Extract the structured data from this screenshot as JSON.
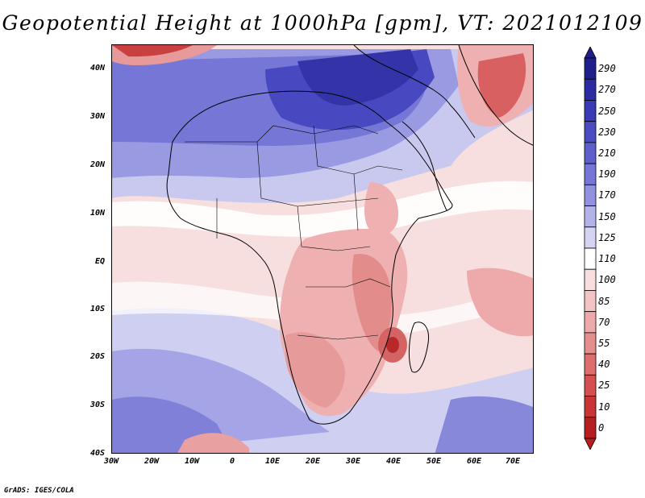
{
  "title": "Geopotential Height at 1000hPa [gpm], VT: 2021012109",
  "credit": "GrADS: IGES/COLA",
  "map": {
    "variable": "Geopotential Height",
    "level": "1000hPa",
    "units": "gpm",
    "valid_time": "2021012109",
    "lat_labels": [
      "40N",
      "30N",
      "20N",
      "10N",
      "EQ",
      "10S",
      "20S",
      "30S",
      "40S"
    ],
    "lon_labels": [
      "30W",
      "20W",
      "10W",
      "0",
      "10E",
      "20E",
      "30E",
      "40E",
      "50E",
      "60E",
      "70E"
    ]
  },
  "colorbar": {
    "labels": [
      "290",
      "270",
      "250",
      "230",
      "210",
      "190",
      "170",
      "150",
      "125",
      "110",
      "100",
      "85",
      "70",
      "55",
      "40",
      "25",
      "10",
      "0"
    ],
    "colors": [
      "#1f1f8c",
      "#2b2ba3",
      "#3a3ab4",
      "#4b4bc2",
      "#5f5fcc",
      "#7676d6",
      "#9191df",
      "#b3b3ea",
      "#d5d5f3",
      "#ffffff",
      "#f8dede",
      "#f3c4c4",
      "#eeaaaa",
      "#e68e8e",
      "#de6e6e",
      "#d45050",
      "#c93434",
      "#b51f1f"
    ]
  }
}
